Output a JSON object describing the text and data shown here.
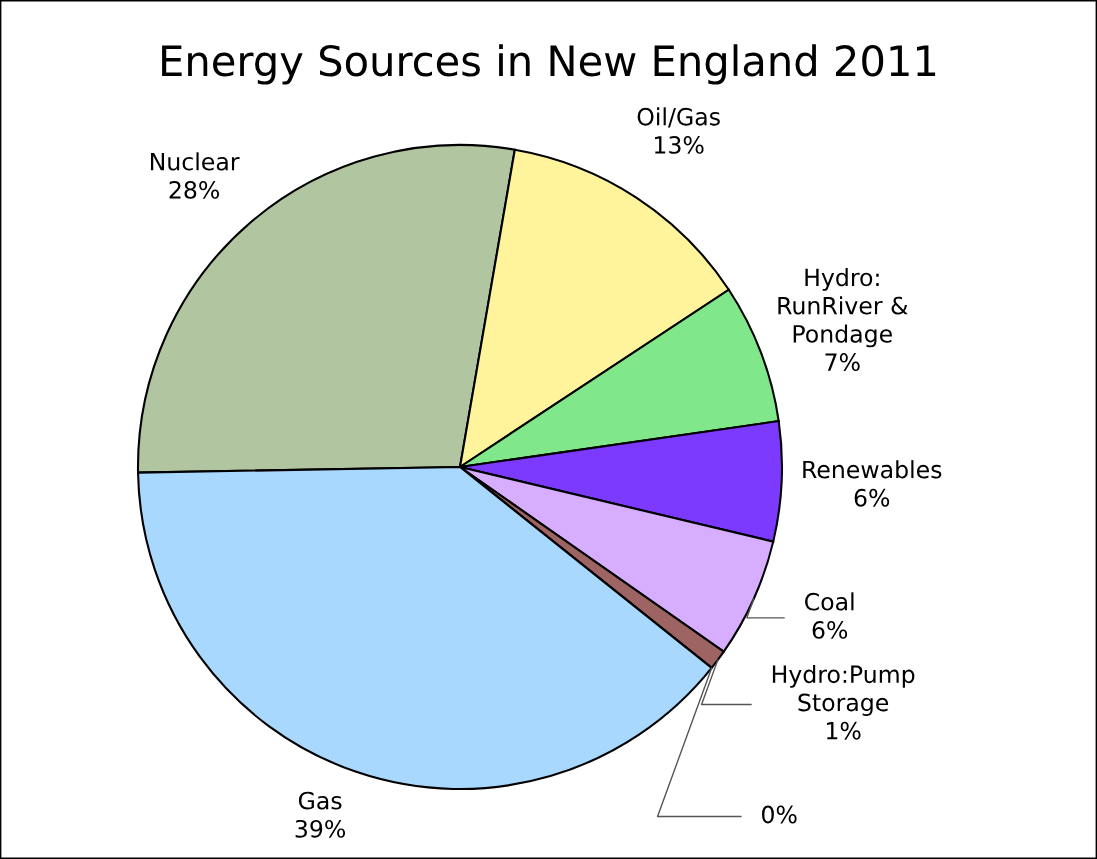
{
  "chart_data": {
    "type": "pie",
    "title": "Energy Sources in New England 2011",
    "categories": [
      "Nuclear",
      "Oil/Gas",
      "Hydro:\nRunRiver &\nPondage",
      "Renewables",
      "Coal",
      "Hydro:Pump\nStorage",
      null,
      "Gas"
    ],
    "values": [
      28,
      13,
      7,
      6,
      6,
      1,
      0,
      39
    ],
    "value_labels": [
      "28%",
      "13%",
      "7%",
      "6%",
      "6%",
      "1%",
      "0%",
      "39%"
    ],
    "colors": [
      "#b1c6a0",
      "#fff39b",
      "#80e78a",
      "#7c3aff",
      "#d7aeff",
      "#9e6464",
      "#ffffff",
      "#a9d8ff"
    ]
  }
}
